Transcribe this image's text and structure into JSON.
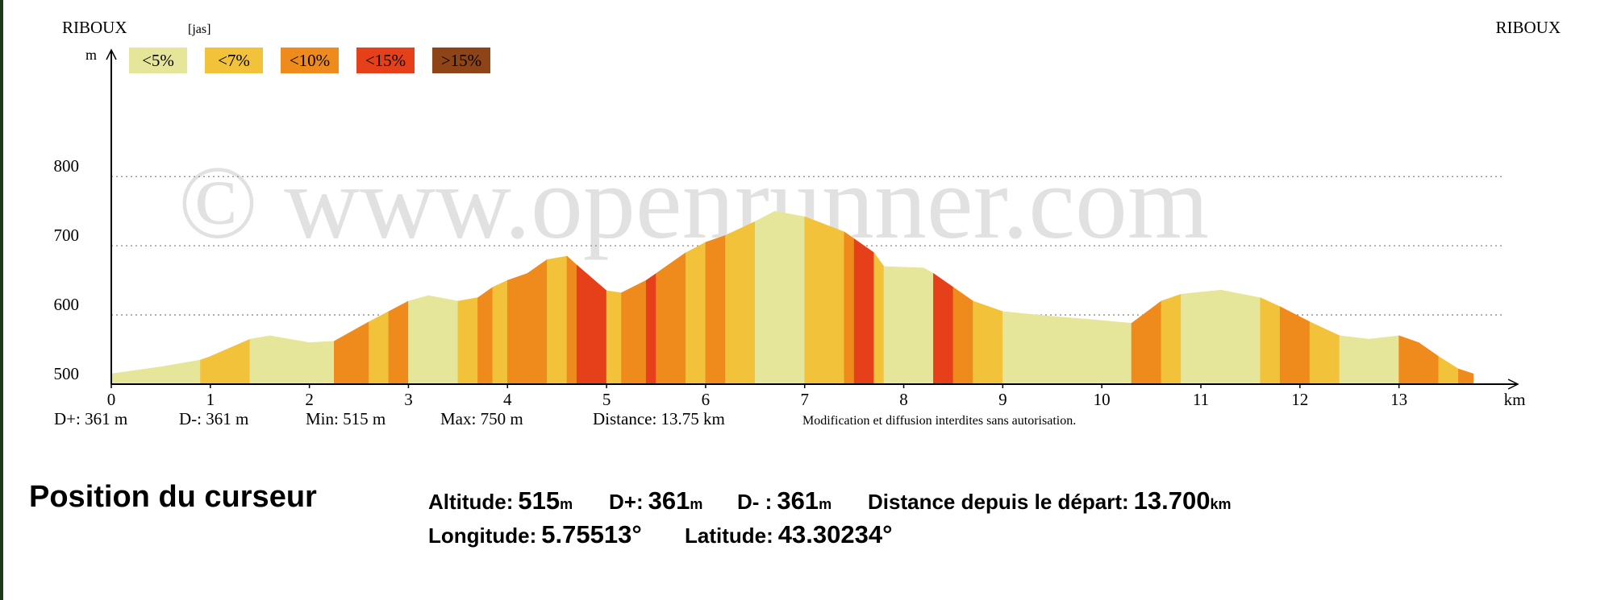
{
  "chart_data": {
    "type": "area",
    "start_label": "RIBOUX",
    "end_label": "RIBOUX",
    "activity": "[jas]",
    "y_label": "m",
    "x_label": "km",
    "watermark": "© www.openrunner.com",
    "slope_classes": [
      {
        "name": "<5%",
        "color": "#e6e69b"
      },
      {
        "name": "<7%",
        "color": "#f2c23a"
      },
      {
        "name": "<10%",
        "color": "#ef8a1c"
      },
      {
        "name": "<15%",
        "color": "#e5401a"
      },
      {
        "name": ">15%",
        "color": "#8e4416"
      }
    ],
    "x": [
      0,
      0.5,
      0.9,
      1.0,
      1.4,
      1.6,
      2.0,
      2.25,
      2.6,
      2.8,
      3.0,
      3.2,
      3.5,
      3.7,
      3.85,
      4.0,
      4.2,
      4.4,
      4.6,
      4.7,
      5.0,
      5.15,
      5.4,
      5.5,
      5.8,
      6.0,
      6.2,
      6.5,
      6.7,
      7.0,
      7.4,
      7.5,
      7.7,
      7.8,
      8.2,
      8.3,
      8.5,
      8.7,
      9.0,
      9.5,
      10.0,
      10.3,
      10.6,
      10.8,
      11.2,
      11.6,
      11.8,
      12.1,
      12.4,
      12.7,
      13.0,
      13.2,
      13.4,
      13.6,
      13.75
    ],
    "values": [
      515,
      525,
      535,
      540,
      565,
      570,
      560,
      562,
      590,
      605,
      620,
      628,
      620,
      625,
      640,
      650,
      660,
      680,
      685,
      672,
      635,
      632,
      650,
      660,
      690,
      705,
      715,
      735,
      750,
      742,
      720,
      710,
      690,
      670,
      668,
      660,
      640,
      620,
      605,
      598,
      592,
      588,
      620,
      630,
      636,
      625,
      612,
      590,
      570,
      565,
      570,
      560,
      540,
      522,
      515
    ],
    "segment_classes": [
      0,
      0,
      1,
      1,
      0,
      0,
      0,
      2,
      1,
      2,
      0,
      0,
      1,
      2,
      1,
      2,
      2,
      1,
      2,
      3,
      1,
      2,
      3,
      2,
      1,
      2,
      1,
      0,
      0,
      1,
      2,
      3,
      1,
      0,
      0,
      3,
      2,
      1,
      0,
      0,
      0,
      2,
      1,
      0,
      0,
      1,
      2,
      1,
      0,
      0,
      2,
      2,
      1,
      2
    ],
    "xlim": [
      0,
      14.2
    ],
    "ylim": [
      500,
      983
    ],
    "xticks": [
      0,
      1,
      2,
      3,
      4,
      5,
      6,
      7,
      8,
      9,
      10,
      11,
      12,
      13
    ],
    "yticks": [
      500,
      600,
      700,
      800
    ],
    "grid": true,
    "stats": [
      "D+: 361 m",
      "D-: 361 m",
      "Min: 515 m",
      "Max: 750 m",
      "Distance: 13.75 km"
    ],
    "notice": "Modification et diffusion interdites sans autorisation."
  },
  "cursor": {
    "title": "Position du curseur",
    "fields": [
      {
        "label": "Altitude:",
        "value": "515",
        "unit": "m"
      },
      {
        "label": "D+:",
        "value": "361",
        "unit": "m"
      },
      {
        "label": "D- :",
        "value": "361",
        "unit": "m"
      },
      {
        "label": "Distance depuis le départ:",
        "value": "13.700",
        "unit": "km"
      },
      {
        "label": "Longitude:",
        "value": "5.75513°",
        "unit": ""
      },
      {
        "label": "Latitude:",
        "value": "43.30234°",
        "unit": ""
      }
    ]
  }
}
